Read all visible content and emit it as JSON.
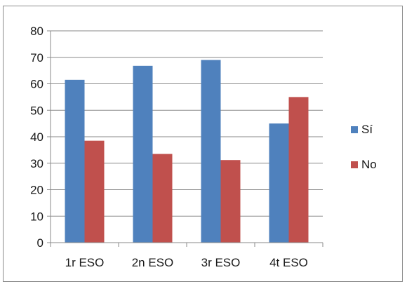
{
  "chart_data": {
    "type": "bar",
    "title": "",
    "xlabel": "",
    "ylabel": "",
    "categories": [
      "1r ESO",
      "2n ESO",
      "3r ESO",
      "4t ESO"
    ],
    "series": [
      {
        "name": "Sí",
        "values": [
          61.5,
          66.8,
          69,
          45
        ],
        "color": "#4f81bd"
      },
      {
        "name": "No",
        "values": [
          38.5,
          33.5,
          31.2,
          55
        ],
        "color": "#c0504d"
      }
    ],
    "ylim": [
      0,
      80
    ],
    "yticks": [
      0,
      10,
      20,
      30,
      40,
      50,
      60,
      70,
      80
    ],
    "grid": true,
    "legend_position": "right"
  }
}
